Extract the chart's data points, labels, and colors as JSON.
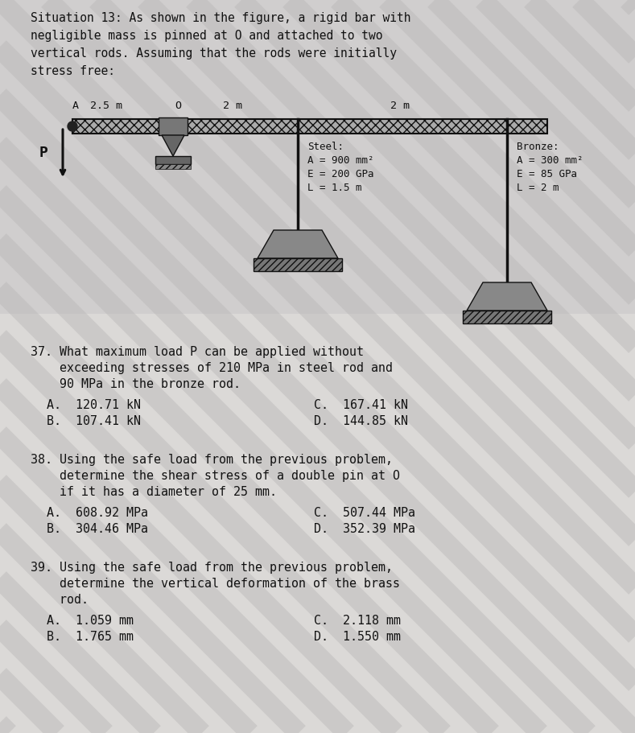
{
  "bg_color": "#d0cece",
  "text_area_color": "#e8e6e4",
  "dark": "#111111",
  "bar_color": "#888888",
  "rod_color": "#555555",
  "anvil_color": "#666666",
  "title_line1": "Situation 13: As shown in the figure, a rigid bar with",
  "title_line2": "negligible mass is pinned at O and attached to two",
  "title_line3": "vertical rods. Assuming that the rods were initially",
  "title_line4": "stress free:",
  "dim_A": "A",
  "dim_25m": "2.5 m",
  "dim_O": "O",
  "dim_2m_1": "2 m",
  "dim_2m_2": "2 m",
  "label_P": "P",
  "steel_line1": "Steel:",
  "steel_line2": "A = 900 mm²",
  "steel_line3": "E = 200 GPa",
  "steel_line4": "L = 1.5 m",
  "bronze_line1": "Bronze:",
  "bronze_line2": "A = 300 mm²",
  "bronze_line3": "E = 85 GPa",
  "bronze_line4": "L = 2 m",
  "q37_line1": "37. What maximum load P can be applied without",
  "q37_line2": "    exceeding stresses of 210 MPa in steel rod and",
  "q37_line3": "    90 MPa in the bronze rod.",
  "q37_A": "A.  120.71 kN",
  "q37_B": "B.  107.41 kN",
  "q37_C": "C.  167.41 kN",
  "q37_D": "D.  144.85 kN",
  "q38_line1": "38. Using the safe load from the previous problem,",
  "q38_line2": "    determine the shear stress of a double pin at O",
  "q38_line3": "    if it has a diameter of 25 mm.",
  "q38_A": "A.  608.92 MPa",
  "q38_B": "B.  304.46 MPa",
  "q38_C": "C.  507.44 MPa",
  "q38_D": "D.  352.39 MPa",
  "q39_line1": "39. Using the safe load from the previous problem,",
  "q39_line2": "    determine the vertical deformation of the brass",
  "q39_line3": "    rod.",
  "q39_A": "A.  1.059 mm",
  "q39_B": "B.  1.765 mm",
  "q39_C": "C.  2.118 mm",
  "q39_D": "D.  1.550 mm",
  "fig_width": 7.89,
  "fig_height": 9.11,
  "dpi": 100
}
